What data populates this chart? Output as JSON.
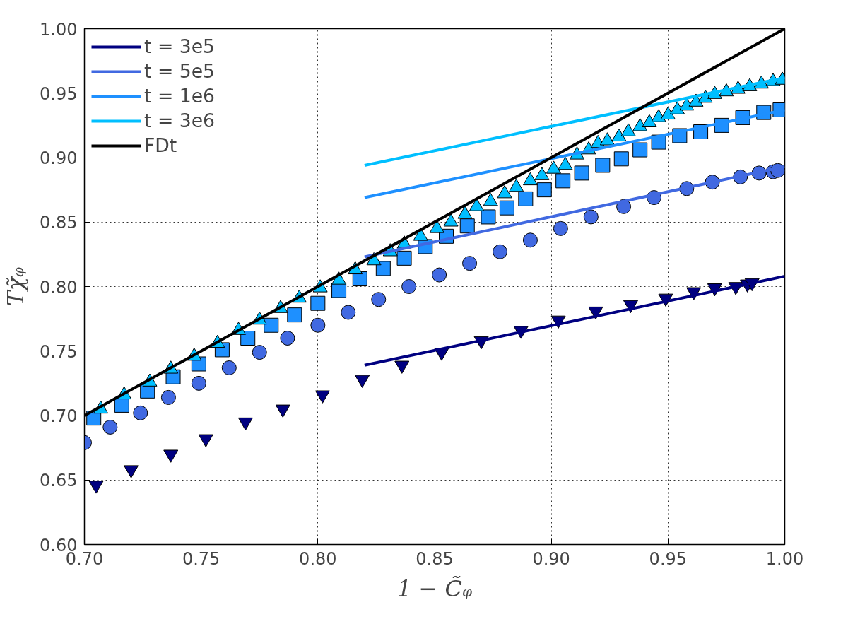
{
  "chart_data": {
    "type": "scatter",
    "xlabel": "1 − C̃ᵩ",
    "ylabel": "Tχ̃ᵩ",
    "xlim": [
      0.7,
      1.0
    ],
    "ylim": [
      0.6,
      1.0
    ],
    "xticks": [
      {
        "value": 0.7,
        "label": "0.70"
      },
      {
        "value": 0.75,
        "label": "0.75"
      },
      {
        "value": 0.8,
        "label": "0.80"
      },
      {
        "value": 0.85,
        "label": "0.85"
      },
      {
        "value": 0.9,
        "label": "0.90"
      },
      {
        "value": 0.95,
        "label": "0.95"
      },
      {
        "value": 1.0,
        "label": "1.00"
      }
    ],
    "yticks": [
      {
        "value": 0.6,
        "label": "0.60"
      },
      {
        "value": 0.65,
        "label": "0.65"
      },
      {
        "value": 0.7,
        "label": "0.70"
      },
      {
        "value": 0.75,
        "label": "0.75"
      },
      {
        "value": 0.8,
        "label": "0.80"
      },
      {
        "value": 0.85,
        "label": "0.85"
      },
      {
        "value": 0.9,
        "label": "0.90"
      },
      {
        "value": 0.95,
        "label": "0.95"
      },
      {
        "value": 1.0,
        "label": "1.00"
      }
    ],
    "grid": true,
    "legend": "top left",
    "series": [
      {
        "marker": "triangle_down",
        "color": "#000080",
        "x": [
          0.705,
          0.72,
          0.737,
          0.752,
          0.769,
          0.785,
          0.802,
          0.819,
          0.836,
          0.853,
          0.87,
          0.887,
          0.903,
          0.919,
          0.934,
          0.949,
          0.961,
          0.97,
          0.979,
          0.984,
          0.986
        ],
        "values": [
          0.646,
          0.658,
          0.67,
          0.682,
          0.695,
          0.705,
          0.716,
          0.728,
          0.739,
          0.749,
          0.758,
          0.766,
          0.774,
          0.781,
          0.786,
          0.791,
          0.796,
          0.799,
          0.8,
          0.802,
          0.803
        ]
      },
      {
        "marker": "circle",
        "color": "#4169e1",
        "x": [
          0.7,
          0.711,
          0.724,
          0.736,
          0.749,
          0.762,
          0.775,
          0.787,
          0.8,
          0.813,
          0.826,
          0.839,
          0.852,
          0.865,
          0.878,
          0.891,
          0.904,
          0.917,
          0.931,
          0.944,
          0.958,
          0.969,
          0.981,
          0.989,
          0.995,
          0.997
        ],
        "values": [
          0.679,
          0.691,
          0.702,
          0.714,
          0.725,
          0.737,
          0.749,
          0.76,
          0.77,
          0.78,
          0.79,
          0.8,
          0.809,
          0.818,
          0.827,
          0.836,
          0.845,
          0.854,
          0.862,
          0.869,
          0.876,
          0.881,
          0.885,
          0.888,
          0.889,
          0.89
        ]
      },
      {
        "marker": "square",
        "color": "#1e90ff",
        "x": [
          0.704,
          0.716,
          0.727,
          0.738,
          0.749,
          0.759,
          0.77,
          0.78,
          0.79,
          0.8,
          0.809,
          0.818,
          0.828,
          0.837,
          0.846,
          0.855,
          0.864,
          0.873,
          0.881,
          0.889,
          0.897,
          0.905,
          0.913,
          0.922,
          0.93,
          0.938,
          0.946,
          0.955,
          0.964,
          0.973,
          0.982,
          0.991,
          0.998
        ],
        "values": [
          0.698,
          0.708,
          0.719,
          0.73,
          0.74,
          0.751,
          0.76,
          0.77,
          0.778,
          0.787,
          0.797,
          0.806,
          0.814,
          0.822,
          0.831,
          0.839,
          0.847,
          0.854,
          0.861,
          0.868,
          0.875,
          0.882,
          0.888,
          0.894,
          0.899,
          0.906,
          0.912,
          0.917,
          0.92,
          0.925,
          0.931,
          0.935,
          0.937
        ]
      },
      {
        "marker": "triangle",
        "color": "#00bfff",
        "x": [
          0.707,
          0.717,
          0.728,
          0.737,
          0.747,
          0.757,
          0.766,
          0.775,
          0.784,
          0.792,
          0.801,
          0.809,
          0.816,
          0.824,
          0.831,
          0.837,
          0.844,
          0.851,
          0.857,
          0.863,
          0.868,
          0.874,
          0.88,
          0.885,
          0.891,
          0.896,
          0.901,
          0.906,
          0.911,
          0.916,
          0.92,
          0.924,
          0.929,
          0.933,
          0.938,
          0.942,
          0.946,
          0.95,
          0.954,
          0.958,
          0.962,
          0.966,
          0.97,
          0.975,
          0.98,
          0.985,
          0.99,
          0.995,
          0.999
        ],
        "values": [
          0.705,
          0.716,
          0.726,
          0.736,
          0.746,
          0.756,
          0.766,
          0.774,
          0.783,
          0.791,
          0.799,
          0.805,
          0.813,
          0.82,
          0.827,
          0.833,
          0.839,
          0.845,
          0.85,
          0.856,
          0.862,
          0.866,
          0.872,
          0.877,
          0.882,
          0.886,
          0.891,
          0.894,
          0.902,
          0.906,
          0.911,
          0.913,
          0.916,
          0.92,
          0.924,
          0.927,
          0.931,
          0.933,
          0.937,
          0.94,
          0.943,
          0.946,
          0.949,
          0.951,
          0.953,
          0.955,
          0.957,
          0.959,
          0.96
        ]
      },
      {
        "type": "line",
        "name": "t = 3e5",
        "color": "#000080",
        "x": [
          0.82,
          1.0
        ],
        "values": [
          0.739,
          0.808
        ]
      },
      {
        "type": "line",
        "name": "t = 5e5",
        "color": "#4169e1",
        "x": [
          0.82,
          1.0
        ],
        "values": [
          0.823,
          0.893
        ]
      },
      {
        "type": "line",
        "name": "t = 1e6",
        "color": "#1e90ff",
        "x": [
          0.82,
          1.0
        ],
        "values": [
          0.869,
          0.937
        ]
      },
      {
        "type": "line",
        "name": "t = 3e6",
        "color": "#00bfff",
        "x": [
          0.82,
          1.0
        ],
        "values": [
          0.894,
          0.962
        ]
      },
      {
        "type": "line",
        "name": "FDt",
        "color": "#000000",
        "x": [
          0.7,
          1.0
        ],
        "values": [
          0.7,
          1.0
        ]
      }
    ]
  }
}
